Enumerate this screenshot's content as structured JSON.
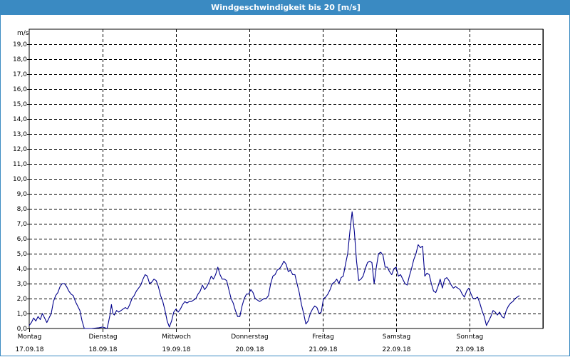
{
  "window": {
    "title": "Windgeschwindigkeit bis 20 [m/s]"
  },
  "colors": {
    "title_bar": "#3a8ac2",
    "line": "#00008b",
    "grid": "#000000"
  },
  "chart_data": {
    "type": "line",
    "title": "Windgeschwindigkeit bis 20 [m/s]",
    "ylabel": "m/s",
    "ylim": [
      0,
      20
    ],
    "ytick_labels": [
      "0,0",
      "1,0",
      "2,0",
      "3,0",
      "4,0",
      "5,0",
      "6,0",
      "7,0",
      "8,0",
      "9,0",
      "10,0",
      "11,0",
      "12,0",
      "13,0",
      "14,0",
      "15,0",
      "16,0",
      "17,0",
      "18,0",
      "19,0"
    ],
    "grid": true,
    "x_unit": "days since Montag 17.09.18",
    "xlim": [
      0,
      7
    ],
    "days": [
      {
        "weekday": "Montag",
        "date": "17.09.18"
      },
      {
        "weekday": "Dienstag",
        "date": "18.09.18"
      },
      {
        "weekday": "Mittwoch",
        "date": "19.09.18"
      },
      {
        "weekday": "Donnerstag",
        "date": "20.09.18"
      },
      {
        "weekday": "Freitag",
        "date": "21.09.18"
      },
      {
        "weekday": "Samstag",
        "date": "22.09.18"
      },
      {
        "weekday": "Sonntag",
        "date": "23.09.18"
      }
    ],
    "series": [
      {
        "values": [
          [
            0.0,
            0.2
          ],
          [
            0.03,
            0.4
          ],
          [
            0.06,
            0.7
          ],
          [
            0.09,
            0.5
          ],
          [
            0.12,
            0.8
          ],
          [
            0.15,
            0.6
          ],
          [
            0.18,
            1.0
          ],
          [
            0.21,
            0.7
          ],
          [
            0.24,
            0.4
          ],
          [
            0.27,
            0.7
          ],
          [
            0.3,
            1.0
          ],
          [
            0.33,
            1.8
          ],
          [
            0.36,
            2.2
          ],
          [
            0.39,
            2.4
          ],
          [
            0.42,
            2.8
          ],
          [
            0.45,
            3.0
          ],
          [
            0.48,
            3.0
          ],
          [
            0.51,
            2.8
          ],
          [
            0.54,
            2.5
          ],
          [
            0.57,
            2.3
          ],
          [
            0.6,
            2.2
          ],
          [
            0.63,
            1.8
          ],
          [
            0.66,
            1.5
          ],
          [
            0.69,
            1.2
          ],
          [
            0.72,
            0.5
          ],
          [
            0.75,
            0.0
          ],
          [
            0.85,
            0.0
          ],
          [
            0.95,
            0.05
          ],
          [
            1.0,
            0.1
          ],
          [
            1.03,
            0.05
          ],
          [
            1.06,
            0.0
          ],
          [
            1.08,
            0.4
          ],
          [
            1.1,
            0.9
          ],
          [
            1.12,
            1.6
          ],
          [
            1.14,
            1.0
          ],
          [
            1.16,
            0.9
          ],
          [
            1.19,
            1.2
          ],
          [
            1.22,
            1.1
          ],
          [
            1.25,
            1.2
          ],
          [
            1.28,
            1.3
          ],
          [
            1.31,
            1.4
          ],
          [
            1.34,
            1.3
          ],
          [
            1.37,
            1.6
          ],
          [
            1.4,
            2.0
          ],
          [
            1.43,
            2.2
          ],
          [
            1.46,
            2.5
          ],
          [
            1.49,
            2.7
          ],
          [
            1.52,
            2.9
          ],
          [
            1.55,
            3.3
          ],
          [
            1.58,
            3.6
          ],
          [
            1.61,
            3.5
          ],
          [
            1.64,
            3.0
          ],
          [
            1.67,
            3.1
          ],
          [
            1.7,
            3.3
          ],
          [
            1.73,
            3.2
          ],
          [
            1.76,
            2.8
          ],
          [
            1.79,
            2.2
          ],
          [
            1.82,
            1.8
          ],
          [
            1.85,
            1.2
          ],
          [
            1.88,
            0.5
          ],
          [
            1.91,
            0.1
          ],
          [
            1.94,
            0.5
          ],
          [
            1.97,
            1.1
          ],
          [
            2.0,
            1.3
          ],
          [
            2.03,
            1.1
          ],
          [
            2.06,
            1.3
          ],
          [
            2.09,
            1.6
          ],
          [
            2.12,
            1.8
          ],
          [
            2.15,
            1.7
          ],
          [
            2.18,
            1.8
          ],
          [
            2.21,
            1.8
          ],
          [
            2.24,
            1.9
          ],
          [
            2.27,
            2.0
          ],
          [
            2.3,
            2.3
          ],
          [
            2.33,
            2.5
          ],
          [
            2.36,
            2.9
          ],
          [
            2.39,
            2.6
          ],
          [
            2.42,
            2.8
          ],
          [
            2.45,
            3.1
          ],
          [
            2.48,
            3.5
          ],
          [
            2.51,
            3.3
          ],
          [
            2.54,
            3.6
          ],
          [
            2.57,
            4.1
          ],
          [
            2.6,
            3.6
          ],
          [
            2.63,
            3.3
          ],
          [
            2.66,
            3.3
          ],
          [
            2.69,
            3.2
          ],
          [
            2.72,
            2.6
          ],
          [
            2.75,
            2.0
          ],
          [
            2.78,
            1.7
          ],
          [
            2.81,
            1.2
          ],
          [
            2.84,
            0.8
          ],
          [
            2.87,
            0.8
          ],
          [
            2.9,
            1.5
          ],
          [
            2.93,
            2.0
          ],
          [
            2.96,
            2.3
          ],
          [
            2.99,
            2.3
          ],
          [
            3.02,
            2.6
          ],
          [
            3.05,
            2.4
          ],
          [
            3.08,
            2.0
          ],
          [
            3.11,
            1.9
          ],
          [
            3.14,
            1.8
          ],
          [
            3.17,
            1.9
          ],
          [
            3.2,
            2.0
          ],
          [
            3.23,
            2.0
          ],
          [
            3.26,
            2.2
          ],
          [
            3.29,
            3.0
          ],
          [
            3.32,
            3.5
          ],
          [
            3.35,
            3.6
          ],
          [
            3.38,
            3.9
          ],
          [
            3.41,
            4.0
          ],
          [
            3.44,
            4.2
          ],
          [
            3.47,
            4.5
          ],
          [
            3.5,
            4.3
          ],
          [
            3.53,
            3.8
          ],
          [
            3.56,
            3.9
          ],
          [
            3.59,
            3.6
          ],
          [
            3.62,
            3.6
          ],
          [
            3.65,
            3.0
          ],
          [
            3.68,
            2.4
          ],
          [
            3.71,
            1.6
          ],
          [
            3.74,
            1.0
          ],
          [
            3.77,
            0.3
          ],
          [
            3.8,
            0.5
          ],
          [
            3.83,
            1.0
          ],
          [
            3.86,
            1.3
          ],
          [
            3.89,
            1.5
          ],
          [
            3.92,
            1.4
          ],
          [
            3.95,
            1.0
          ],
          [
            3.98,
            1.1
          ],
          [
            4.01,
            2.0
          ],
          [
            4.04,
            2.1
          ],
          [
            4.07,
            2.3
          ],
          [
            4.1,
            2.6
          ],
          [
            4.13,
            3.0
          ],
          [
            4.16,
            3.1
          ],
          [
            4.19,
            3.3
          ],
          [
            4.22,
            3.0
          ],
          [
            4.25,
            3.4
          ],
          [
            4.28,
            3.5
          ],
          [
            4.31,
            4.3
          ],
          [
            4.34,
            5.0
          ],
          [
            4.37,
            6.5
          ],
          [
            4.4,
            7.8
          ],
          [
            4.43,
            6.5
          ],
          [
            4.46,
            4.5
          ],
          [
            4.49,
            3.2
          ],
          [
            4.52,
            3.3
          ],
          [
            4.55,
            3.5
          ],
          [
            4.58,
            4.0
          ],
          [
            4.61,
            4.4
          ],
          [
            4.64,
            4.5
          ],
          [
            4.67,
            4.4
          ],
          [
            4.7,
            3.0
          ],
          [
            4.73,
            4.1
          ],
          [
            4.76,
            5.0
          ],
          [
            4.79,
            5.1
          ],
          [
            4.82,
            4.9
          ],
          [
            4.85,
            4.1
          ],
          [
            4.88,
            4.1
          ],
          [
            4.91,
            3.8
          ],
          [
            4.94,
            3.6
          ],
          [
            4.97,
            4.0
          ],
          [
            5.0,
            4.1
          ],
          [
            5.03,
            3.5
          ],
          [
            5.06,
            3.6
          ],
          [
            5.09,
            3.3
          ],
          [
            5.12,
            3.0
          ],
          [
            5.15,
            2.9
          ],
          [
            5.18,
            3.5
          ],
          [
            5.21,
            4.0
          ],
          [
            5.24,
            4.6
          ],
          [
            5.27,
            5.0
          ],
          [
            5.3,
            5.6
          ],
          [
            5.33,
            5.4
          ],
          [
            5.36,
            5.5
          ],
          [
            5.39,
            3.5
          ],
          [
            5.42,
            3.7
          ],
          [
            5.45,
            3.6
          ],
          [
            5.48,
            3.0
          ],
          [
            5.51,
            2.5
          ],
          [
            5.54,
            2.4
          ],
          [
            5.57,
            2.8
          ],
          [
            5.6,
            3.3
          ],
          [
            5.63,
            2.7
          ],
          [
            5.66,
            3.3
          ],
          [
            5.69,
            3.4
          ],
          [
            5.72,
            3.2
          ],
          [
            5.75,
            2.9
          ],
          [
            5.78,
            2.7
          ],
          [
            5.81,
            2.8
          ],
          [
            5.84,
            2.7
          ],
          [
            5.87,
            2.6
          ],
          [
            5.9,
            2.3
          ],
          [
            5.93,
            2.1
          ],
          [
            5.96,
            2.5
          ],
          [
            5.99,
            2.7
          ],
          [
            6.02,
            2.3
          ],
          [
            6.05,
            2.0
          ],
          [
            6.08,
            2.0
          ],
          [
            6.11,
            2.1
          ],
          [
            6.14,
            1.7
          ],
          [
            6.17,
            1.2
          ],
          [
            6.2,
            0.8
          ],
          [
            6.23,
            0.2
          ],
          [
            6.26,
            0.5
          ],
          [
            6.29,
            0.8
          ],
          [
            6.32,
            1.2
          ],
          [
            6.35,
            1.1
          ],
          [
            6.38,
            0.9
          ],
          [
            6.41,
            1.1
          ],
          [
            6.44,
            0.8
          ],
          [
            6.47,
            0.7
          ],
          [
            6.5,
            1.2
          ],
          [
            6.53,
            1.5
          ],
          [
            6.56,
            1.7
          ],
          [
            6.59,
            1.8
          ],
          [
            6.62,
            2.0
          ],
          [
            6.65,
            2.1
          ],
          [
            6.68,
            2.2
          ]
        ]
      }
    ]
  }
}
